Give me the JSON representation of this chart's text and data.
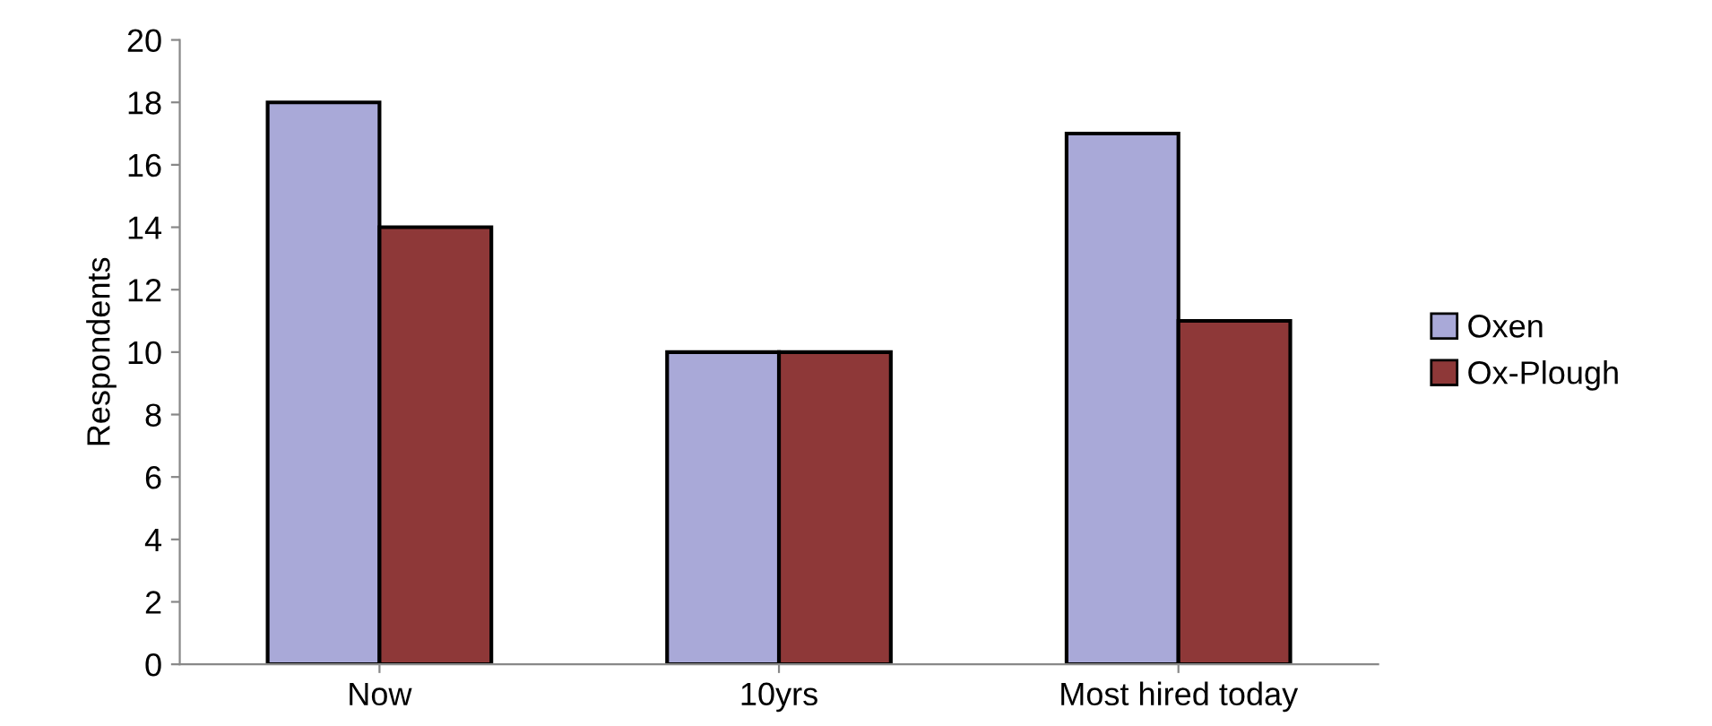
{
  "chart_data": {
    "type": "bar",
    "ylabel": "Respondents",
    "categories": [
      "Now",
      "10yrs",
      "Most hired today"
    ],
    "series": [
      {
        "name": "Oxen",
        "color": "#a9a9d8",
        "values": [
          18,
          10,
          17
        ]
      },
      {
        "name": "Ox-Plough",
        "color": "#8e3838",
        "values": [
          14,
          10,
          11
        ]
      }
    ],
    "ylim": [
      0,
      20
    ],
    "yticks": [
      0,
      2,
      4,
      6,
      8,
      10,
      12,
      14,
      16,
      18,
      20
    ],
    "grid": false,
    "legend": "right"
  }
}
